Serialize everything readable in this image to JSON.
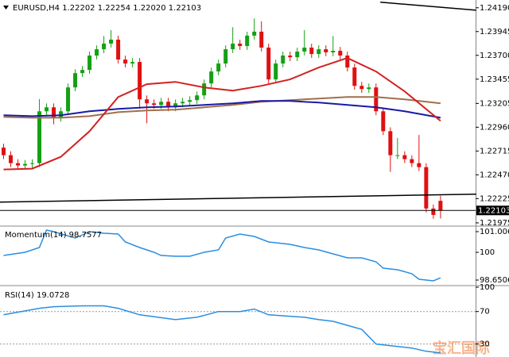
{
  "chart_data": [
    {
      "type": "candlestick",
      "title": "EURUSD,H4  1.22202 1.22254 1.22020 1.22103",
      "xlim": [
        -0.5,
        65.9
      ],
      "ylim": [
        1.2195,
        1.2427
      ],
      "yticks": [
        {
          "value": 1.2419,
          "label": "1.24190"
        },
        {
          "value": 1.23945,
          "label": "1.23945"
        },
        {
          "value": 1.237,
          "label": "1.23700"
        },
        {
          "value": 1.23455,
          "label": "1.23455"
        },
        {
          "value": 1.23205,
          "label": "1.23205"
        },
        {
          "value": 1.2296,
          "label": "1.22960"
        },
        {
          "value": 1.22715,
          "label": "1.22715"
        },
        {
          "value": 1.2247,
          "label": "1.22470"
        },
        {
          "value": 1.22225,
          "label": "1.22225"
        },
        {
          "value": 1.21975,
          "label": "1.21975"
        }
      ],
      "up_color": "#14a014",
      "down_color": "#e01010",
      "open": [
        1.2275,
        1.22672,
        1.2259,
        1.22566,
        1.22582,
        1.2259,
        1.23124,
        1.23165,
        1.23058,
        1.23124,
        1.2337,
        1.23517,
        1.2355,
        1.23698,
        1.23763,
        1.23821,
        1.23862,
        1.23657,
        1.23616,
        1.23632,
        1.23247,
        1.23206,
        1.23189,
        1.23222,
        1.23165,
        1.23206,
        1.23222,
        1.23239,
        1.23288,
        1.23411,
        1.23534,
        1.23616,
        1.23763,
        1.23821,
        1.23796,
        1.23903,
        1.23944,
        1.2378,
        1.23452,
        1.23616,
        1.23698,
        1.23681,
        1.23739,
        1.2378,
        1.23714,
        1.23763,
        1.23731,
        1.23747,
        1.23698,
        1.23575,
        1.23386,
        1.23353,
        1.2337,
        1.23124,
        1.22919,
        1.22672,
        1.22672,
        1.22631,
        1.2259,
        1.22549,
        1.22123,
        1.22202
      ],
      "high": [
        1.2279,
        1.22712,
        1.2263,
        1.22622,
        1.2263,
        1.2325,
        1.23205,
        1.23205,
        1.23164,
        1.2341,
        1.23557,
        1.2359,
        1.23738,
        1.23803,
        1.239,
        1.2396,
        1.23902,
        1.23697,
        1.23672,
        1.23672,
        1.23287,
        1.23246,
        1.23262,
        1.23262,
        1.23246,
        1.23262,
        1.23279,
        1.23328,
        1.23451,
        1.23574,
        1.23656,
        1.23803,
        1.2399,
        1.23861,
        1.23943,
        1.2408,
        1.2405,
        1.2382,
        1.23656,
        1.23738,
        1.23738,
        1.23779,
        1.2396,
        1.2382,
        1.23803,
        1.23803,
        1.239,
        1.23787,
        1.23738,
        1.23615,
        1.23426,
        1.2341,
        1.2341,
        1.23164,
        1.22959,
        1.2285,
        1.22712,
        1.22671,
        1.2288,
        1.22589,
        1.22163,
        1.22254
      ],
      "low": [
        1.22632,
        1.2255,
        1.22526,
        1.22526,
        1.22542,
        1.2255,
        1.23084,
        1.2299,
        1.23018,
        1.23084,
        1.2333,
        1.23477,
        1.2351,
        1.23658,
        1.23723,
        1.23781,
        1.23617,
        1.23576,
        1.23576,
        1.2315,
        1.23,
        1.23149,
        1.23149,
        1.23125,
        1.23125,
        1.23166,
        1.23182,
        1.23199,
        1.23248,
        1.23371,
        1.23494,
        1.23576,
        1.23723,
        1.23756,
        1.23756,
        1.23863,
        1.2374,
        1.23412,
        1.23412,
        1.23576,
        1.23641,
        1.23641,
        1.23699,
        1.23674,
        1.23674,
        1.23691,
        1.23691,
        1.23658,
        1.23535,
        1.23346,
        1.23313,
        1.23313,
        1.23084,
        1.22879,
        1.225,
        1.22632,
        1.22591,
        1.2255,
        1.22509,
        1.22083,
        1.22017,
        1.2202
      ],
      "close": [
        1.22672,
        1.2259,
        1.22566,
        1.22582,
        1.2259,
        1.23124,
        1.23165,
        1.23058,
        1.23124,
        1.2337,
        1.23517,
        1.2355,
        1.23698,
        1.23763,
        1.23821,
        1.23862,
        1.23657,
        1.23616,
        1.23632,
        1.23247,
        1.23206,
        1.23189,
        1.23222,
        1.23165,
        1.23206,
        1.23222,
        1.23239,
        1.23288,
        1.23411,
        1.23534,
        1.23616,
        1.23763,
        1.23821,
        1.23796,
        1.23903,
        1.23944,
        1.2378,
        1.23452,
        1.23616,
        1.23698,
        1.23681,
        1.23739,
        1.2378,
        1.23714,
        1.23763,
        1.23731,
        1.23747,
        1.23698,
        1.23575,
        1.23386,
        1.23353,
        1.2337,
        1.23124,
        1.22919,
        1.22672,
        1.22672,
        1.22631,
        1.2259,
        1.22549,
        1.22123,
        1.22057,
        1.22103
      ],
      "overlays": [
        {
          "color": "#a0704a",
          "x": [
            0,
            4,
            8,
            12,
            16,
            20,
            24,
            28,
            32,
            36,
            40,
            44,
            48,
            52,
            56,
            61
          ],
          "values": [
            1.23066,
            1.23058,
            1.23058,
            1.23074,
            1.23115,
            1.23132,
            1.2314,
            1.23165,
            1.23189,
            1.23222,
            1.23239,
            1.23255,
            1.23271,
            1.23271,
            1.23247,
            1.23206
          ]
        },
        {
          "color": "#1a1aa6",
          "x": [
            0,
            4,
            8,
            12,
            16,
            20,
            24,
            28,
            32,
            36,
            40,
            44,
            48,
            52,
            56,
            61
          ],
          "values": [
            1.23083,
            1.23074,
            1.23083,
            1.23124,
            1.23148,
            1.23165,
            1.23173,
            1.23189,
            1.23206,
            1.2323,
            1.2323,
            1.23214,
            1.23189,
            1.23165,
            1.23124,
            1.23058
          ]
        },
        {
          "color": "#d42020",
          "x": [
            0,
            4,
            8,
            12,
            16,
            20,
            24,
            28,
            32,
            36,
            40,
            44,
            48,
            52,
            56,
            61
          ],
          "values": [
            1.22525,
            1.22533,
            1.22656,
            1.22919,
            1.23271,
            1.23403,
            1.23427,
            1.2337,
            1.23337,
            1.23386,
            1.23452,
            1.23575,
            1.23673,
            1.23534,
            1.23329,
            1.23025
          ]
        }
      ],
      "trendlines": [
        {
          "color": "#000000",
          "x": [
            52.6,
            66
          ],
          "values": [
            1.24247,
            1.24165
          ]
        },
        {
          "color": "#000000",
          "x": [
            -0.5,
            66
          ],
          "values": [
            1.22189,
            1.2227
          ]
        }
      ],
      "price_line": {
        "value": 1.22103,
        "label": "1.22103"
      }
    },
    {
      "type": "line",
      "title": "Momentum(14) 98.7577",
      "color": "#2a8ee0",
      "xlim": [
        -0.5,
        65.9
      ],
      "ylim": [
        98.458,
        101.238
      ],
      "yticks": [
        101.0067,
        100,
        98.6506
      ],
      "x": [
        0,
        3,
        5,
        6,
        7,
        10,
        12,
        14,
        16,
        17,
        19,
        21,
        22,
        24,
        26,
        28,
        30,
        31,
        33,
        35,
        37,
        40,
        42,
        44,
        46,
        48,
        50,
        52,
        53,
        55,
        57,
        58,
        60,
        61
      ],
      "values": [
        99.849,
        100.003,
        100.235,
        101.084,
        101.007,
        100.698,
        101.007,
        100.93,
        100.891,
        100.505,
        100.235,
        100.003,
        99.849,
        99.81,
        99.81,
        100.003,
        100.119,
        100.698,
        100.891,
        100.775,
        100.505,
        100.389,
        100.235,
        100.119,
        99.926,
        99.733,
        99.733,
        99.54,
        99.231,
        99.154,
        98.961,
        98.69,
        98.613,
        98.758
      ]
    },
    {
      "type": "line",
      "title": "RSI(14) 19.0728",
      "color": "#2a8ee0",
      "grid": true,
      "xlim": [
        -0.5,
        65.9
      ],
      "ylim": [
        14,
        100
      ],
      "yticks": [
        100,
        70,
        30
      ],
      "x": [
        0,
        5,
        7,
        11,
        14,
        16,
        19,
        24,
        27,
        30,
        33,
        35,
        37,
        42,
        44,
        46,
        48,
        50,
        52,
        54,
        57,
        59,
        61
      ],
      "values": [
        66,
        74,
        76,
        77,
        77,
        74,
        66,
        60,
        63,
        70,
        70,
        73,
        66,
        63,
        60,
        58,
        53,
        48,
        30,
        28,
        25,
        21,
        19.0728
      ]
    }
  ],
  "watermark": "宝汇国际"
}
